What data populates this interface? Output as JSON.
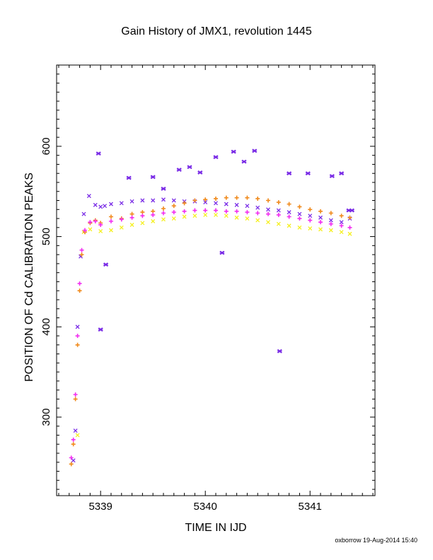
{
  "chart": {
    "title": "Gain History of JMX1, revolution 1445",
    "footer": "oxborrow 19-Aug-2014 15:40"
  },
  "chart_data": {
    "type": "scatter",
    "title": "Gain History of JMX1, revolution 1445",
    "xlabel": "TIME IN IJD",
    "ylabel": "POSITION OF Cd CALIBRATION PEAKS",
    "xlim": [
      5338.58,
      5341.62
    ],
    "ylim": [
      213,
      690
    ],
    "xticks": [
      5339,
      5340,
      5341
    ],
    "xtick_labels": [
      "5339",
      "5340",
      "5341"
    ],
    "yticks": [
      300,
      400,
      500,
      600
    ],
    "ytick_labels": [
      "300",
      "400",
      "500",
      "600"
    ],
    "grid": false,
    "legend": "none",
    "series": [
      {
        "color": "#7a2ce6",
        "marker": "x",
        "x": [
          5338.74,
          5338.76,
          5338.78,
          5338.81,
          5338.84,
          5338.89,
          5338.95,
          5339.0,
          5339.04,
          5339.1,
          5339.2,
          5339.3,
          5339.4,
          5339.5,
          5339.6,
          5339.7,
          5339.8,
          5339.9,
          5340.0,
          5340.1,
          5340.2,
          5340.3,
          5340.4,
          5340.5,
          5340.6,
          5340.7,
          5340.8,
          5340.9,
          5341.0,
          5341.1,
          5341.2,
          5341.3,
          5341.38
        ],
        "y": [
          252,
          285,
          400,
          478,
          525,
          545,
          535,
          533,
          534,
          536,
          537,
          539,
          540,
          540,
          541,
          540,
          539,
          539,
          538,
          537,
          536,
          535,
          534,
          532,
          530,
          529,
          527,
          525,
          523,
          521,
          518,
          516,
          520
        ]
      },
      {
        "color": "#7a2ce6",
        "marker": "x-outlier",
        "x": [
          5338.98,
          5339.0,
          5339.05,
          5339.27,
          5339.5,
          5339.6,
          5339.75,
          5339.85,
          5339.95,
          5340.1,
          5340.16,
          5340.27,
          5340.37,
          5340.47,
          5340.71,
          5340.8,
          5340.98,
          5341.21,
          5341.3,
          5341.37,
          5341.4
        ],
        "y": [
          592,
          397,
          469,
          565,
          566,
          553,
          574,
          577,
          571,
          588,
          482,
          594,
          583,
          595,
          373,
          570,
          570,
          567,
          570,
          529,
          529
        ]
      },
      {
        "color": "#f5f020",
        "marker": "x",
        "x": [
          5338.78,
          5338.84,
          5338.9,
          5339.0,
          5339.1,
          5339.2,
          5339.3,
          5339.4,
          5339.5,
          5339.6,
          5339.7,
          5339.8,
          5339.9,
          5340.0,
          5340.1,
          5340.2,
          5340.3,
          5340.4,
          5340.5,
          5340.6,
          5340.7,
          5340.8,
          5340.9,
          5341.0,
          5341.1,
          5341.2,
          5341.3,
          5341.38
        ],
        "y": [
          280,
          505,
          508,
          506,
          507,
          510,
          513,
          515,
          517,
          519,
          520,
          522,
          523,
          524,
          524,
          523,
          521,
          520,
          518,
          516,
          514,
          512,
          510,
          509,
          508,
          507,
          505,
          503
        ]
      },
      {
        "color": "#f08a1c",
        "marker": "+",
        "x": [
          5338.72,
          5338.74,
          5338.76,
          5338.78,
          5338.8,
          5338.82,
          5338.85,
          5338.9,
          5338.95,
          5339.0,
          5339.1,
          5339.2,
          5339.3,
          5339.4,
          5339.5,
          5339.6,
          5339.7,
          5339.8,
          5339.9,
          5340.0,
          5340.1,
          5340.2,
          5340.3,
          5340.4,
          5340.5,
          5340.6,
          5340.7,
          5340.8,
          5340.9,
          5341.0,
          5341.1,
          5341.2,
          5341.3,
          5341.38
        ],
        "y": [
          248,
          270,
          320,
          380,
          440,
          480,
          505,
          515,
          518,
          515,
          522,
          520,
          525,
          527,
          528,
          531,
          534,
          537,
          540,
          541,
          542,
          543,
          543,
          543,
          542,
          540,
          538,
          536,
          533,
          530,
          528,
          526,
          523,
          521
        ]
      },
      {
        "color": "#f22ef0",
        "marker": "+",
        "x": [
          5338.72,
          5338.74,
          5338.76,
          5338.78,
          5338.8,
          5338.82,
          5338.85,
          5338.9,
          5338.95,
          5339.0,
          5339.1,
          5339.2,
          5339.3,
          5339.4,
          5339.5,
          5339.6,
          5339.7,
          5339.8,
          5339.9,
          5340.0,
          5340.1,
          5340.2,
          5340.3,
          5340.4,
          5340.5,
          5340.6,
          5340.7,
          5340.8,
          5340.9,
          5341.0,
          5341.1,
          5341.2,
          5341.3,
          5341.38
        ],
        "y": [
          255,
          275,
          325,
          390,
          448,
          485,
          507,
          516,
          517,
          513,
          517,
          519,
          521,
          523,
          524,
          526,
          527,
          528,
          529,
          529,
          529,
          528,
          528,
          527,
          526,
          525,
          524,
          522,
          520,
          518,
          516,
          514,
          512,
          510
        ]
      }
    ]
  }
}
